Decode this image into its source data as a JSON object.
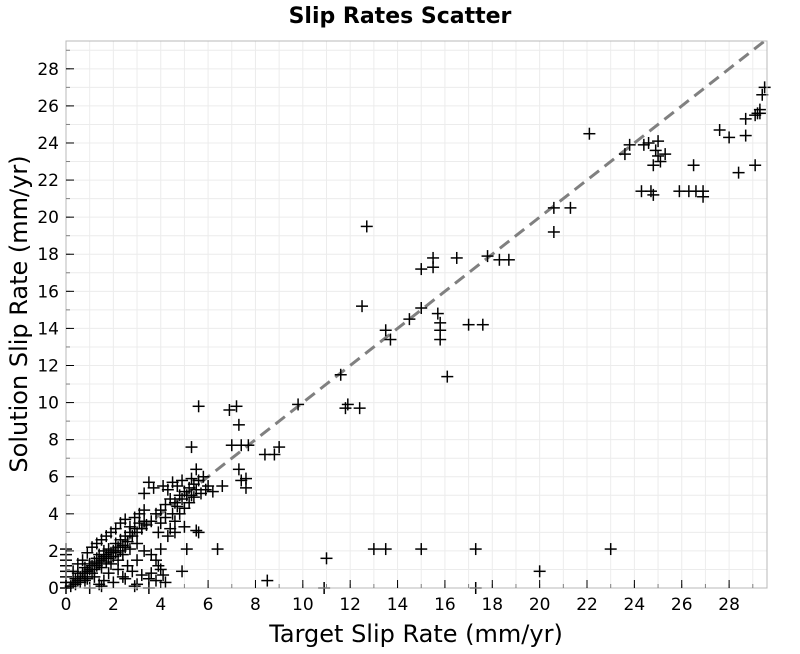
{
  "chart_data": {
    "type": "scatter",
    "title": "Slip Rates Scatter",
    "xlabel": "Target Slip Rate (mm/yr)",
    "ylabel": "Solution Slip Rate (mm/yr)",
    "xlim": [
      0,
      29.6
    ],
    "ylim": [
      0,
      29.5
    ],
    "xticks": [
      0,
      2,
      4,
      6,
      8,
      10,
      12,
      14,
      16,
      18,
      20,
      22,
      24,
      26,
      28
    ],
    "yticks": [
      0,
      2,
      4,
      6,
      8,
      10,
      12,
      14,
      16,
      18,
      20,
      22,
      24,
      26,
      28
    ],
    "grid": true,
    "marker": "+",
    "marker_color": "#000000",
    "reference_line": {
      "style": "dashed",
      "color": "#808080",
      "x": [
        0,
        29.6
      ],
      "y": [
        0,
        29.6
      ]
    },
    "points": [
      [
        0.0,
        0.0
      ],
      [
        0.0,
        0.3
      ],
      [
        0.0,
        0.6
      ],
      [
        0.0,
        0.9
      ],
      [
        0.0,
        1.2
      ],
      [
        0.0,
        1.5
      ],
      [
        0.0,
        1.8
      ],
      [
        0.0,
        2.1
      ],
      [
        0.2,
        0.1
      ],
      [
        0.3,
        0.3
      ],
      [
        0.4,
        0.2
      ],
      [
        0.4,
        0.5
      ],
      [
        0.5,
        0.4
      ],
      [
        0.5,
        0.8
      ],
      [
        0.6,
        0.6
      ],
      [
        0.6,
        0.3
      ],
      [
        0.7,
        0.8
      ],
      [
        0.8,
        0.6
      ],
      [
        0.8,
        1.1
      ],
      [
        0.9,
        0.9
      ],
      [
        0.9,
        0.5
      ],
      [
        1.0,
        1.0
      ],
      [
        1.0,
        1.3
      ],
      [
        1.1,
        0.8
      ],
      [
        1.1,
        1.2
      ],
      [
        1.2,
        1.4
      ],
      [
        1.2,
        1.0
      ],
      [
        1.3,
        1.6
      ],
      [
        1.3,
        1.2
      ],
      [
        1.4,
        1.3
      ],
      [
        1.4,
        1.8
      ],
      [
        1.5,
        1.5
      ],
      [
        1.5,
        1.1
      ],
      [
        1.6,
        1.7
      ],
      [
        1.6,
        2.0
      ],
      [
        1.7,
        1.4
      ],
      [
        1.7,
        1.8
      ],
      [
        1.8,
        1.6
      ],
      [
        1.8,
        2.1
      ],
      [
        1.9,
        1.9
      ],
      [
        1.9,
        1.3
      ],
      [
        2.0,
        2.0
      ],
      [
        2.0,
        1.7
      ],
      [
        2.1,
        2.4
      ],
      [
        2.1,
        1.9
      ],
      [
        2.2,
        2.2
      ],
      [
        2.2,
        1.5
      ],
      [
        2.3,
        2.6
      ],
      [
        2.3,
        2.0
      ],
      [
        2.4,
        2.3
      ],
      [
        2.4,
        1.8
      ],
      [
        2.5,
        2.8
      ],
      [
        2.5,
        2.2
      ],
      [
        2.6,
        2.5
      ],
      [
        2.7,
        3.0
      ],
      [
        2.7,
        2.1
      ],
      [
        2.8,
        2.8
      ],
      [
        2.9,
        3.2
      ],
      [
        3.0,
        3.0
      ],
      [
        3.0,
        2.4
      ],
      [
        3.1,
        3.5
      ],
      [
        3.2,
        3.2
      ],
      [
        3.3,
        3.6
      ],
      [
        3.4,
        3.4
      ],
      [
        1.0,
        0.0
      ],
      [
        1.5,
        0.1
      ],
      [
        2.0,
        0.3
      ],
      [
        2.5,
        0.5
      ],
      [
        3.0,
        0.2
      ],
      [
        0.8,
        0.4
      ],
      [
        1.2,
        0.6
      ],
      [
        1.8,
        0.8
      ],
      [
        2.2,
        1.0
      ],
      [
        2.6,
        1.2
      ],
      [
        2.8,
        0.9
      ],
      [
        3.2,
        0.7
      ],
      [
        3.5,
        0.5
      ],
      [
        1.4,
        0.2
      ],
      [
        2.4,
        0.6
      ],
      [
        1.6,
        0.4
      ],
      [
        3.0,
        1.5
      ],
      [
        3.3,
        2.0
      ],
      [
        3.6,
        1.8
      ],
      [
        3.8,
        1.5
      ],
      [
        3.6,
        0.8
      ],
      [
        3.8,
        0.4
      ],
      [
        4.2,
        0.3
      ],
      [
        4.0,
        1.0
      ],
      [
        0.3,
        0.9
      ],
      [
        0.5,
        1.3
      ],
      [
        0.7,
        1.5
      ],
      [
        0.9,
        1.9
      ],
      [
        1.1,
        2.2
      ],
      [
        1.3,
        2.4
      ],
      [
        1.5,
        2.6
      ],
      [
        1.7,
        2.8
      ],
      [
        1.9,
        3.0
      ],
      [
        2.1,
        3.2
      ],
      [
        2.3,
        3.5
      ],
      [
        2.5,
        3.7
      ],
      [
        2.7,
        3.3
      ],
      [
        2.9,
        3.8
      ],
      [
        3.1,
        4.0
      ],
      [
        3.3,
        4.2
      ],
      [
        3.6,
        3.6
      ],
      [
        3.8,
        4.0
      ],
      [
        4.0,
        4.2
      ],
      [
        4.2,
        4.5
      ],
      [
        4.4,
        4.8
      ],
      [
        4.6,
        4.6
      ],
      [
        4.8,
        5.0
      ],
      [
        5.0,
        5.2
      ],
      [
        5.2,
        5.4
      ],
      [
        5.4,
        5.6
      ],
      [
        5.6,
        5.8
      ],
      [
        5.8,
        6.0
      ],
      [
        6.0,
        5.5
      ],
      [
        6.2,
        5.2
      ],
      [
        5.5,
        6.4
      ],
      [
        5.3,
        5.9
      ],
      [
        4.5,
        5.7
      ],
      [
        4.7,
        5.5
      ],
      [
        4.9,
        5.8
      ],
      [
        3.5,
        5.7
      ],
      [
        3.3,
        5.1
      ],
      [
        3.7,
        5.4
      ],
      [
        4.1,
        5.5
      ],
      [
        4.3,
        5.3
      ],
      [
        4.0,
        3.5
      ],
      [
        4.2,
        3.8
      ],
      [
        4.4,
        3.2
      ],
      [
        4.6,
        3.6
      ],
      [
        4.8,
        4.0
      ],
      [
        5.0,
        4.3
      ],
      [
        5.2,
        4.6
      ],
      [
        5.4,
        4.9
      ],
      [
        4.5,
        4.0
      ],
      [
        4.7,
        4.4
      ],
      [
        4.9,
        4.8
      ],
      [
        5.1,
        5.0
      ],
      [
        5.3,
        5.0
      ],
      [
        5.5,
        5.3
      ],
      [
        5.7,
        5.1
      ],
      [
        5.9,
        5.3
      ],
      [
        3.9,
        3.0
      ],
      [
        4.3,
        2.8
      ],
      [
        4.6,
        3.0
      ],
      [
        5.0,
        3.3
      ],
      [
        5.5,
        3.1
      ],
      [
        5.6,
        3.0
      ],
      [
        4.0,
        2.1
      ],
      [
        5.1,
        2.1
      ],
      [
        3.9,
        1.2
      ],
      [
        4.1,
        0.7
      ],
      [
        3.5,
        0.0
      ],
      [
        2.9,
        0.1
      ],
      [
        4.9,
        0.9
      ],
      [
        6.4,
        2.1
      ],
      [
        8.5,
        0.4
      ],
      [
        10.9,
        0.0
      ],
      [
        11.0,
        1.6
      ],
      [
        13.0,
        2.1
      ],
      [
        13.5,
        2.1
      ],
      [
        15.0,
        2.1
      ],
      [
        17.3,
        2.1
      ],
      [
        17.3,
        0.0
      ],
      [
        20.0,
        0.9
      ],
      [
        23.0,
        2.1
      ],
      [
        5.3,
        7.6
      ],
      [
        5.6,
        9.8
      ],
      [
        6.9,
        9.6
      ],
      [
        7.2,
        9.8
      ],
      [
        7.0,
        7.7
      ],
      [
        7.4,
        7.7
      ],
      [
        7.7,
        7.7
      ],
      [
        7.3,
        8.8
      ],
      [
        7.3,
        6.4
      ],
      [
        7.4,
        5.8
      ],
      [
        7.6,
        5.9
      ],
      [
        7.6,
        5.4
      ],
      [
        6.6,
        5.5
      ],
      [
        8.4,
        7.2
      ],
      [
        8.8,
        7.2
      ],
      [
        9.0,
        7.6
      ],
      [
        9.8,
        9.9
      ],
      [
        11.6,
        11.5
      ],
      [
        11.8,
        9.7
      ],
      [
        11.9,
        9.9
      ],
      [
        12.4,
        9.7
      ],
      [
        12.5,
        15.2
      ],
      [
        12.7,
        19.5
      ],
      [
        13.5,
        13.9
      ],
      [
        13.7,
        13.4
      ],
      [
        14.5,
        14.5
      ],
      [
        15.0,
        15.1
      ],
      [
        15.0,
        17.2
      ],
      [
        15.5,
        17.3
      ],
      [
        15.5,
        17.8
      ],
      [
        15.7,
        14.8
      ],
      [
        15.8,
        13.9
      ],
      [
        15.8,
        13.4
      ],
      [
        15.8,
        14.3
      ],
      [
        16.1,
        11.4
      ],
      [
        16.5,
        17.8
      ],
      [
        17.0,
        14.2
      ],
      [
        17.6,
        14.2
      ],
      [
        17.8,
        17.9
      ],
      [
        18.3,
        17.7
      ],
      [
        18.7,
        17.7
      ],
      [
        20.6,
        20.5
      ],
      [
        20.6,
        19.2
      ],
      [
        21.3,
        20.5
      ],
      [
        22.1,
        24.5
      ],
      [
        23.6,
        23.4
      ],
      [
        23.8,
        23.9
      ],
      [
        24.3,
        21.4
      ],
      [
        24.4,
        23.9
      ],
      [
        24.6,
        24.0
      ],
      [
        24.7,
        21.4
      ],
      [
        24.8,
        22.8
      ],
      [
        24.8,
        21.2
      ],
      [
        24.9,
        23.6
      ],
      [
        25.0,
        24.1
      ],
      [
        25.1,
        23.0
      ],
      [
        25.0,
        23.3
      ],
      [
        25.3,
        23.4
      ],
      [
        25.9,
        21.4
      ],
      [
        26.3,
        21.4
      ],
      [
        26.5,
        22.8
      ],
      [
        26.6,
        21.4
      ],
      [
        26.9,
        21.4
      ],
      [
        26.9,
        21.1
      ],
      [
        27.6,
        24.7
      ],
      [
        28.0,
        24.3
      ],
      [
        28.4,
        22.4
      ],
      [
        28.7,
        25.3
      ],
      [
        28.7,
        24.4
      ],
      [
        29.1,
        22.8
      ],
      [
        29.2,
        25.6
      ],
      [
        29.3,
        25.6
      ],
      [
        29.4,
        26.6
      ],
      [
        29.5,
        27.0
      ],
      [
        29.3,
        25.8
      ],
      [
        29.1,
        25.5
      ]
    ]
  }
}
